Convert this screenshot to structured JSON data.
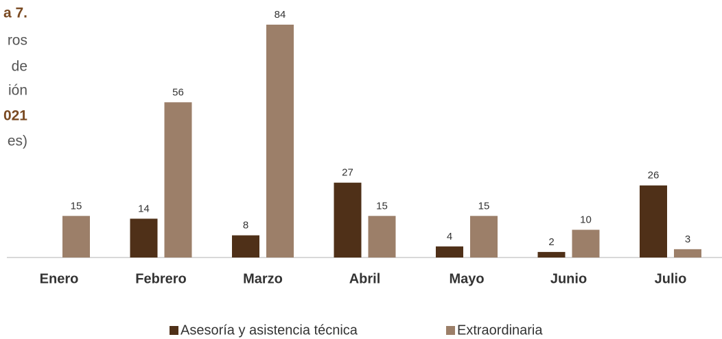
{
  "chart_data": {
    "type": "bar",
    "title_lines": [
      "a 7.",
      "ros",
      "de",
      "ión",
      "021",
      "es)"
    ],
    "categories": [
      "Enero",
      "Febrero",
      "Marzo",
      "Abril",
      "Mayo",
      "Junio",
      "Julio"
    ],
    "series": [
      {
        "name": "Asesoría y asistencia técnica",
        "color": "#4f3018",
        "values": [
          null,
          14,
          8,
          27,
          4,
          2,
          26
        ]
      },
      {
        "name": "Extraordinaria",
        "color": "#9c7f69",
        "values": [
          15,
          56,
          84,
          15,
          15,
          10,
          3
        ]
      }
    ],
    "ylim": [
      0,
      84
    ]
  }
}
